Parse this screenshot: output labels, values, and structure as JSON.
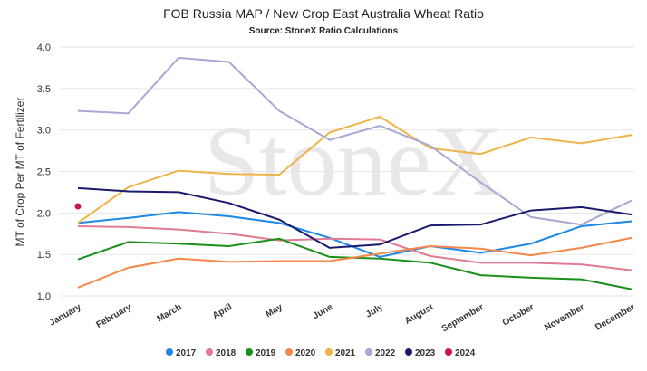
{
  "chart_data": {
    "type": "line",
    "title": "FOB Russia MAP / New Crop East Australia Wheat Ratio",
    "subtitle": "Source: StoneX Ratio Calculations",
    "watermark": "StoneX",
    "y_label": "MT of Crop Per MT of Fertilizer",
    "categories": [
      "January",
      "February",
      "March",
      "April",
      "May",
      "June",
      "July",
      "August",
      "September",
      "October",
      "November",
      "December"
    ],
    "ylim": [
      1.0,
      4.0
    ],
    "yticks": [
      {
        "value": 1,
        "label": "1.0"
      },
      {
        "value": 1.5,
        "label": "1.5"
      },
      {
        "value": 2,
        "label": "2.0"
      },
      {
        "value": 2.5,
        "label": "2.5"
      },
      {
        "value": 3,
        "label": "3.0"
      },
      {
        "value": 3.5,
        "label": "3.5"
      },
      {
        "value": 4,
        "label": "4.0"
      }
    ],
    "grid": true,
    "legend": "bottom",
    "series": [
      {
        "name": "2017",
        "color": "#1e88e5",
        "values": [
          1.88,
          1.94,
          2.01,
          1.96,
          1.88,
          1.7,
          1.47,
          1.6,
          1.52,
          1.63,
          1.84,
          1.9
        ]
      },
      {
        "name": "2018",
        "color": "#e07b91",
        "values": [
          1.84,
          1.83,
          1.8,
          1.75,
          1.67,
          1.69,
          1.68,
          1.48,
          1.4,
          1.4,
          1.38,
          1.31
        ]
      },
      {
        "name": "2019",
        "color": "#1a8f1a",
        "values": [
          1.44,
          1.65,
          1.63,
          1.6,
          1.69,
          1.47,
          1.45,
          1.4,
          1.25,
          1.22,
          1.2,
          1.08
        ]
      },
      {
        "name": "2020",
        "color": "#f4874b",
        "values": [
          1.1,
          1.34,
          1.45,
          1.41,
          1.42,
          1.42,
          1.51,
          1.6,
          1.57,
          1.49,
          1.58,
          1.7
        ]
      },
      {
        "name": "2021",
        "color": "#f0b34a",
        "values": [
          1.88,
          2.31,
          2.51,
          2.47,
          2.46,
          2.97,
          3.16,
          2.78,
          2.71,
          2.91,
          2.84,
          2.94
        ]
      },
      {
        "name": "2022",
        "color": "#a7a8d4",
        "values": [
          3.23,
          3.2,
          3.87,
          3.82,
          3.23,
          2.88,
          3.05,
          2.81,
          2.37,
          1.95,
          1.86,
          2.15
        ]
      },
      {
        "name": "2023",
        "color": "#1a1a6e",
        "values": [
          2.3,
          2.26,
          2.25,
          2.12,
          1.92,
          1.58,
          1.62,
          1.85,
          1.86,
          2.03,
          2.07,
          1.98
        ]
      },
      {
        "name": "2024",
        "color": "#c8174b",
        "values": [
          2.08,
          null,
          null,
          null,
          null,
          null,
          null,
          null,
          null,
          null,
          null,
          null
        ]
      }
    ]
  }
}
